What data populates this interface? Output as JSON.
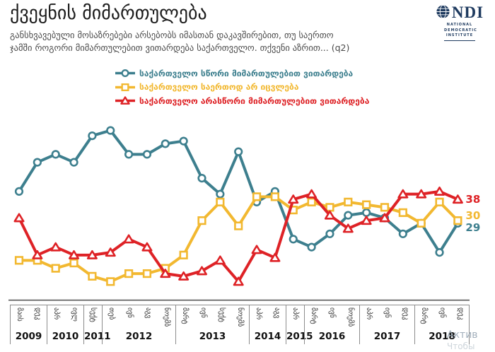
{
  "header": {
    "title": "ქვეყნის მიმართულება",
    "subtitle": "განსხვავებული მოსაზრებები არსებობს იმასთან დაკავშირებით, თუ საერთო ჯამში როგორი მიმართულებით ვითარდება საქართველო. თქვენი აზრით...  (q2)"
  },
  "logo": {
    "text": "NDI",
    "sub": "NATIONAL DEMOCRATIC INSTITUTE",
    "globe_icon": "globe"
  },
  "watermark": {
    "line1": "Актив",
    "line2": "Чтобы"
  },
  "chart_data": {
    "type": "line",
    "title": "ქვეყნის მიმართულება",
    "question": "q2",
    "grid": false,
    "legend_position": "top",
    "ylim": [
      0,
      70
    ],
    "x_axis": [
      {
        "year": "2009",
        "months": [
          "მაის",
          "დეკ"
        ]
      },
      {
        "year": "2010",
        "months": [
          "აპრ",
          "ივლ"
        ]
      },
      {
        "year": "2011",
        "months": [
          "სექტ"
        ]
      },
      {
        "year": "2012",
        "months": [
          "თებ",
          "ივნ",
          "აგვ",
          "ნოემბ"
        ]
      },
      {
        "year": "2013",
        "months": [
          "მარტ",
          "ივნ",
          "სექტ",
          "ნოემბ"
        ]
      },
      {
        "year": "2014",
        "months": [
          "აპრ",
          "აგვ"
        ]
      },
      {
        "year": "2015",
        "months": [
          "აპრ"
        ]
      },
      {
        "year": "2016",
        "months": [
          "მარტ",
          "ივნ",
          "ნოემბ"
        ]
      },
      {
        "year": "2017",
        "months": [
          "აპრ",
          "ივნ",
          "დეკ"
        ]
      },
      {
        "year": "2018",
        "months": [
          "მარტ",
          "ივნ",
          "დეკ"
        ]
      }
    ],
    "series": [
      {
        "name": "საქართველო სწორი მიმართულებით ვითარდება",
        "marker": "circle",
        "color": "#3D7F8E",
        "values": [
          41,
          52,
          55,
          52,
          62,
          64,
          55,
          55,
          59,
          60,
          46,
          40,
          56,
          37,
          41,
          23,
          20,
          25,
          32,
          33,
          31,
          25,
          29,
          18,
          29
        ],
        "end_label": "29"
      },
      {
        "name": "საქართველო საერთოდ არ იცვლება",
        "marker": "square",
        "color": "#F2B830",
        "values": [
          15,
          15,
          12,
          14,
          9,
          7,
          10,
          10,
          12,
          17,
          30,
          37,
          28,
          39,
          39,
          34,
          37,
          35,
          37,
          36,
          35,
          33,
          29,
          37,
          30
        ],
        "end_label": "30"
      },
      {
        "name": "საქართველო არასწორი მიმართულებით ვითარდება",
        "marker": "triangle",
        "color": "#DE2226",
        "values": [
          31,
          17,
          20,
          17,
          17,
          18,
          23,
          20,
          10,
          9,
          11,
          15,
          7,
          19,
          16,
          38,
          40,
          32,
          27,
          30,
          31,
          40,
          40,
          41,
          38
        ],
        "end_label": "38"
      }
    ]
  }
}
